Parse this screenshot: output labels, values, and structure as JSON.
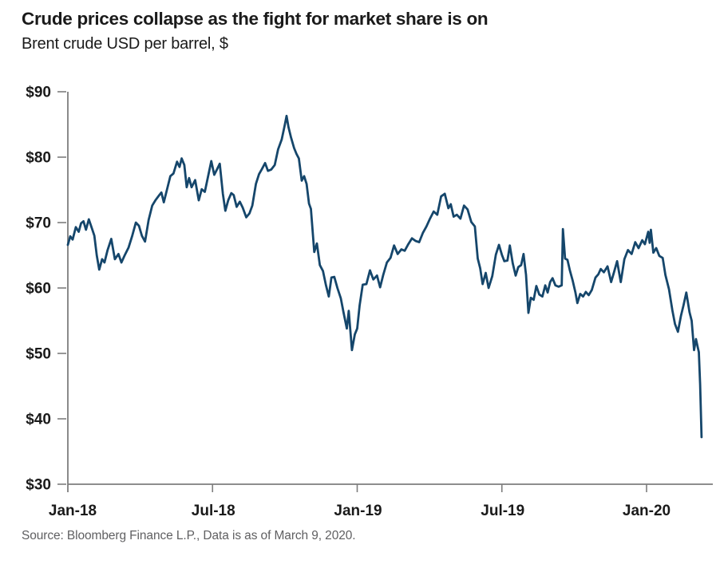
{
  "header": {
    "title": "Crude prices collapse as the fight for market share is on",
    "subtitle": "Brent crude USD per barrel, $"
  },
  "footer": {
    "source": "Source: Bloomberg Finance L.P., Data is as of March 9, 2020."
  },
  "colors": {
    "line": "#15466b",
    "axis": "#7d7d7d",
    "text": "#1a1a1a",
    "source_text": "#606062",
    "background": "#ffffff"
  },
  "chart_data": {
    "type": "line",
    "title": "Crude prices collapse as the fight for market share is on",
    "subtitle": "Brent crude USD per barrel, $",
    "xlabel": "",
    "ylabel": "USD per barrel",
    "grid": false,
    "legend": false,
    "x_axis": {
      "unit": "months since Jan-2018",
      "range": [
        0,
        26.75
      ],
      "ticks": [
        {
          "label": "Jan-18",
          "m": 0,
          "dx": 6
        },
        {
          "label": "Jul-18",
          "m": 6,
          "dx": 1
        },
        {
          "label": "Jan-19",
          "m": 12,
          "dx": 1
        },
        {
          "label": "Jul-19",
          "m": 18,
          "dx": 1
        },
        {
          "label": "Jan-20",
          "m": 24,
          "dx": 0
        }
      ]
    },
    "y_axis": {
      "range": [
        30,
        90
      ],
      "ticks": [
        {
          "label": "$90",
          "value": 90
        },
        {
          "label": "$80",
          "value": 80
        },
        {
          "label": "$70",
          "value": 70
        },
        {
          "label": "$60",
          "value": 60
        },
        {
          "label": "$50",
          "value": 50
        },
        {
          "label": "$40",
          "value": 40
        },
        {
          "label": "$30",
          "value": 30
        }
      ]
    },
    "series": [
      {
        "name": "Brent crude spot price",
        "color": "#15466b",
        "points": [
          [
            0.0,
            66.6
          ],
          [
            0.1,
            67.9
          ],
          [
            0.2,
            67.4
          ],
          [
            0.33,
            69.3
          ],
          [
            0.45,
            68.6
          ],
          [
            0.55,
            69.9
          ],
          [
            0.65,
            70.2
          ],
          [
            0.75,
            68.9
          ],
          [
            0.87,
            70.5
          ],
          [
            1.0,
            69.1
          ],
          [
            1.1,
            68.0
          ],
          [
            1.2,
            65.0
          ],
          [
            1.3,
            62.8
          ],
          [
            1.42,
            64.4
          ],
          [
            1.52,
            63.9
          ],
          [
            1.65,
            65.8
          ],
          [
            1.8,
            67.5
          ],
          [
            1.95,
            64.4
          ],
          [
            2.1,
            65.2
          ],
          [
            2.22,
            63.9
          ],
          [
            2.37,
            65.1
          ],
          [
            2.52,
            66.2
          ],
          [
            2.67,
            68.0
          ],
          [
            2.82,
            70.0
          ],
          [
            2.95,
            69.5
          ],
          [
            3.07,
            68.0
          ],
          [
            3.2,
            67.1
          ],
          [
            3.35,
            70.4
          ],
          [
            3.5,
            72.6
          ],
          [
            3.63,
            73.4
          ],
          [
            3.77,
            74.1
          ],
          [
            3.88,
            74.6
          ],
          [
            3.98,
            73.1
          ],
          [
            4.1,
            74.9
          ],
          [
            4.25,
            77.1
          ],
          [
            4.38,
            77.5
          ],
          [
            4.53,
            79.3
          ],
          [
            4.63,
            78.5
          ],
          [
            4.72,
            79.8
          ],
          [
            4.83,
            78.8
          ],
          [
            4.93,
            75.4
          ],
          [
            5.03,
            76.8
          ],
          [
            5.13,
            75.4
          ],
          [
            5.28,
            76.5
          ],
          [
            5.43,
            73.4
          ],
          [
            5.55,
            75.1
          ],
          [
            5.68,
            74.7
          ],
          [
            5.83,
            77.3
          ],
          [
            5.95,
            79.4
          ],
          [
            6.07,
            77.3
          ],
          [
            6.18,
            78.1
          ],
          [
            6.3,
            79.0
          ],
          [
            6.43,
            74.4
          ],
          [
            6.53,
            71.8
          ],
          [
            6.65,
            73.4
          ],
          [
            6.78,
            74.5
          ],
          [
            6.88,
            74.2
          ],
          [
            7.0,
            72.4
          ],
          [
            7.13,
            73.2
          ],
          [
            7.25,
            72.3
          ],
          [
            7.4,
            70.8
          ],
          [
            7.53,
            71.4
          ],
          [
            7.65,
            72.6
          ],
          [
            7.8,
            75.9
          ],
          [
            7.93,
            77.4
          ],
          [
            8.05,
            78.2
          ],
          [
            8.18,
            79.1
          ],
          [
            8.3,
            77.9
          ],
          [
            8.43,
            78.1
          ],
          [
            8.58,
            78.8
          ],
          [
            8.72,
            81.2
          ],
          [
            8.87,
            82.7
          ],
          [
            9.0,
            85.0
          ],
          [
            9.07,
            86.3
          ],
          [
            9.15,
            84.6
          ],
          [
            9.25,
            83.1
          ],
          [
            9.38,
            81.4
          ],
          [
            9.48,
            80.5
          ],
          [
            9.58,
            79.8
          ],
          [
            9.7,
            76.4
          ],
          [
            9.8,
            77.1
          ],
          [
            9.9,
            75.9
          ],
          [
            10.0,
            72.9
          ],
          [
            10.08,
            72.1
          ],
          [
            10.22,
            65.5
          ],
          [
            10.33,
            66.8
          ],
          [
            10.45,
            63.5
          ],
          [
            10.58,
            62.6
          ],
          [
            10.7,
            60.5
          ],
          [
            10.82,
            58.7
          ],
          [
            10.93,
            61.6
          ],
          [
            11.05,
            61.7
          ],
          [
            11.18,
            60.0
          ],
          [
            11.32,
            58.4
          ],
          [
            11.43,
            56.3
          ],
          [
            11.57,
            53.8
          ],
          [
            11.65,
            56.5
          ],
          [
            11.78,
            50.5
          ],
          [
            11.9,
            52.9
          ],
          [
            12.0,
            53.8
          ],
          [
            12.1,
            57.3
          ],
          [
            12.23,
            60.5
          ],
          [
            12.38,
            60.6
          ],
          [
            12.53,
            62.7
          ],
          [
            12.67,
            61.3
          ],
          [
            12.82,
            61.9
          ],
          [
            12.95,
            60.1
          ],
          [
            13.08,
            62.0
          ],
          [
            13.23,
            63.9
          ],
          [
            13.38,
            64.6
          ],
          [
            13.53,
            66.5
          ],
          [
            13.68,
            65.2
          ],
          [
            13.83,
            65.9
          ],
          [
            13.97,
            65.7
          ],
          [
            14.12,
            66.7
          ],
          [
            14.27,
            67.6
          ],
          [
            14.42,
            67.2
          ],
          [
            14.57,
            67.0
          ],
          [
            14.72,
            68.4
          ],
          [
            14.87,
            69.4
          ],
          [
            15.02,
            70.6
          ],
          [
            15.17,
            71.7
          ],
          [
            15.32,
            71.2
          ],
          [
            15.48,
            74.0
          ],
          [
            15.63,
            74.4
          ],
          [
            15.78,
            72.2
          ],
          [
            15.88,
            72.8
          ],
          [
            16.0,
            70.9
          ],
          [
            16.13,
            71.2
          ],
          [
            16.28,
            70.6
          ],
          [
            16.43,
            72.6
          ],
          [
            16.58,
            72.0
          ],
          [
            16.73,
            70.1
          ],
          [
            16.88,
            69.4
          ],
          [
            17.0,
            64.5
          ],
          [
            17.1,
            63.0
          ],
          [
            17.2,
            60.6
          ],
          [
            17.33,
            62.3
          ],
          [
            17.45,
            60.0
          ],
          [
            17.6,
            61.8
          ],
          [
            17.75,
            65.1
          ],
          [
            17.88,
            66.6
          ],
          [
            18.0,
            65.1
          ],
          [
            18.1,
            64.1
          ],
          [
            18.23,
            64.2
          ],
          [
            18.33,
            66.5
          ],
          [
            18.45,
            63.8
          ],
          [
            18.57,
            61.9
          ],
          [
            18.68,
            63.2
          ],
          [
            18.8,
            63.5
          ],
          [
            18.9,
            65.2
          ],
          [
            19.0,
            62.0
          ],
          [
            19.1,
            56.2
          ],
          [
            19.2,
            58.5
          ],
          [
            19.32,
            58.2
          ],
          [
            19.43,
            60.3
          ],
          [
            19.55,
            59.0
          ],
          [
            19.68,
            58.7
          ],
          [
            19.8,
            60.4
          ],
          [
            19.9,
            59.3
          ],
          [
            20.0,
            60.9
          ],
          [
            20.1,
            61.5
          ],
          [
            20.22,
            60.4
          ],
          [
            20.35,
            60.2
          ],
          [
            20.48,
            60.4
          ],
          [
            20.53,
            69.0
          ],
          [
            20.62,
            64.5
          ],
          [
            20.72,
            64.3
          ],
          [
            20.82,
            62.7
          ],
          [
            20.93,
            61.2
          ],
          [
            21.05,
            59.3
          ],
          [
            21.13,
            57.7
          ],
          [
            21.25,
            59.1
          ],
          [
            21.37,
            58.7
          ],
          [
            21.48,
            59.4
          ],
          [
            21.6,
            58.9
          ],
          [
            21.73,
            59.7
          ],
          [
            21.88,
            61.6
          ],
          [
            22.0,
            62.1
          ],
          [
            22.1,
            62.9
          ],
          [
            22.23,
            62.4
          ],
          [
            22.38,
            63.3
          ],
          [
            22.53,
            60.9
          ],
          [
            22.65,
            62.4
          ],
          [
            22.78,
            64.1
          ],
          [
            22.93,
            60.9
          ],
          [
            23.08,
            64.4
          ],
          [
            23.23,
            65.8
          ],
          [
            23.38,
            65.2
          ],
          [
            23.53,
            67.0
          ],
          [
            23.67,
            66.1
          ],
          [
            23.82,
            67.3
          ],
          [
            23.93,
            66.7
          ],
          [
            24.07,
            68.6
          ],
          [
            24.13,
            66.9
          ],
          [
            24.18,
            68.9
          ],
          [
            24.28,
            65.4
          ],
          [
            24.4,
            66.1
          ],
          [
            24.53,
            64.9
          ],
          [
            24.67,
            64.6
          ],
          [
            24.78,
            62.0
          ],
          [
            24.93,
            59.8
          ],
          [
            25.07,
            56.6
          ],
          [
            25.18,
            54.5
          ],
          [
            25.3,
            53.3
          ],
          [
            25.43,
            55.8
          ],
          [
            25.53,
            57.3
          ],
          [
            25.65,
            59.3
          ],
          [
            25.78,
            56.3
          ],
          [
            25.87,
            55.0
          ],
          [
            25.97,
            50.5
          ],
          [
            26.05,
            52.2
          ],
          [
            26.12,
            51.0
          ],
          [
            26.17,
            50.2
          ],
          [
            26.22,
            45.3
          ],
          [
            26.28,
            37.2
          ]
        ]
      }
    ]
  }
}
